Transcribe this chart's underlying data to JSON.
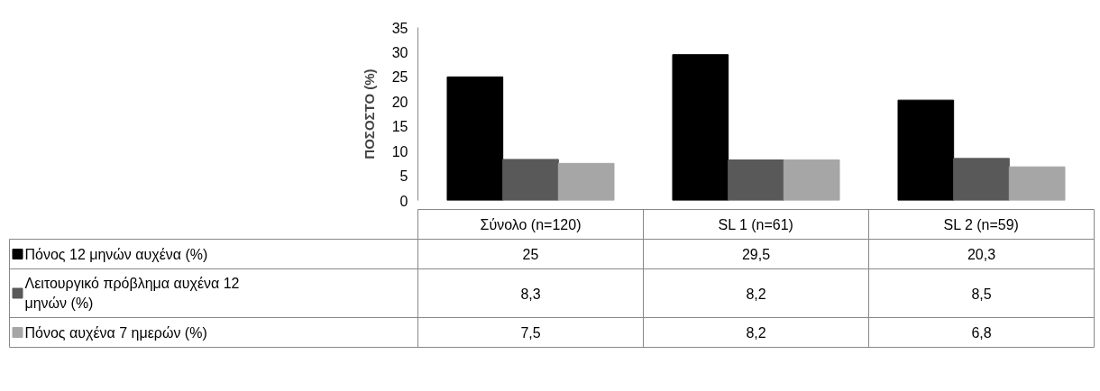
{
  "chart_data": {
    "type": "bar",
    "ylabel": "ΠΟΣΟΣΤΟ (%)",
    "categories": [
      "Σύνολο (n=120)",
      "SL 1 (n=61)",
      "SL 2 (n=59)"
    ],
    "series": [
      {
        "name": "Πόνος 12 μηνών αυχένα (%)",
        "color": "#000000",
        "values": [
          25,
          29.5,
          20.3
        ],
        "value_labels": [
          "25",
          "29,5",
          "20,3"
        ]
      },
      {
        "name": "Λειτουργικό πρόβλημα αυχένα 12 μηνών (%)",
        "color": "#595959",
        "values": [
          8.3,
          8.2,
          8.5
        ],
        "value_labels": [
          "8,3",
          "8,2",
          "8,5"
        ]
      },
      {
        "name": "Πόνος αυχένα 7 ημερών (%)",
        "color": "#a6a6a6",
        "values": [
          7.5,
          8.2,
          6.8
        ],
        "value_labels": [
          "7,5",
          "8,2",
          "6,8"
        ]
      }
    ],
    "ylim": [
      0,
      35
    ],
    "yticks": [
      0,
      5,
      10,
      15,
      20,
      25,
      30,
      35
    ],
    "legend": "bottom"
  }
}
